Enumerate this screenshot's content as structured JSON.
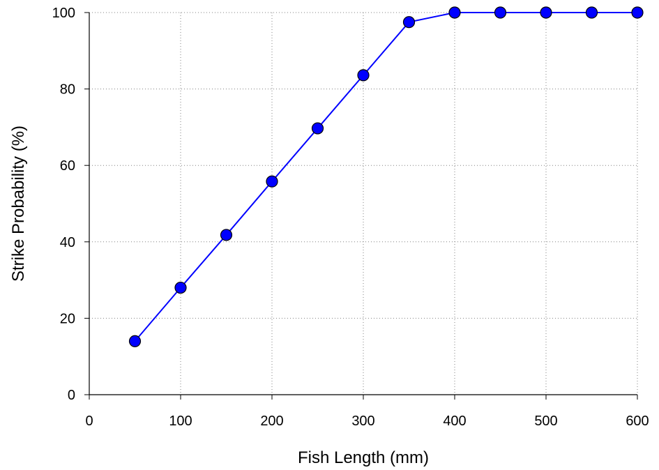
{
  "chart_data": {
    "type": "line",
    "xlabel": "Fish Length (mm)",
    "ylabel": "Strike Probability (%)",
    "xlim": [
      0,
      600
    ],
    "ylim": [
      0,
      100
    ],
    "xticks": [
      0,
      100,
      200,
      300,
      400,
      500,
      600
    ],
    "yticks": [
      0,
      20,
      40,
      60,
      80,
      100
    ],
    "grid": "dotted",
    "series": [
      {
        "x": [
          50,
          100,
          150,
          200,
          250,
          300,
          350,
          400,
          450,
          500,
          550,
          600
        ],
        "y": [
          14,
          28,
          41.8,
          55.8,
          69.7,
          83.6,
          97.5,
          100,
          100,
          100,
          100,
          100
        ],
        "color": "#0000ff",
        "marker": "circle"
      }
    ]
  }
}
